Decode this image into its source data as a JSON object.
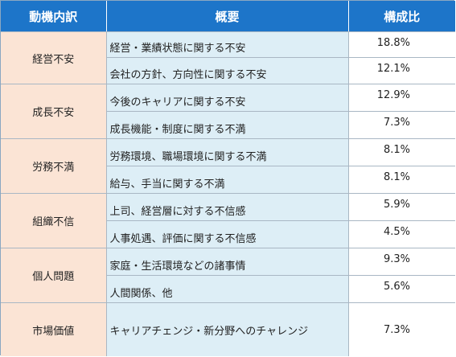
{
  "headers": {
    "category": "動機内訳",
    "overview": "概要",
    "ratio": "構成比"
  },
  "groups": [
    {
      "category": "経営不安",
      "rows": [
        {
          "desc": "経営・業績状態に関する不安",
          "value": "18.8%"
        },
        {
          "desc": "会社の方針、方向性に関する不安",
          "value": "12.1%"
        }
      ]
    },
    {
      "category": "成長不安",
      "rows": [
        {
          "desc": "今後のキャリアに関する不安",
          "value": "12.9%"
        },
        {
          "desc": "成長機能・制度に関する不満",
          "value": "7.3%"
        }
      ]
    },
    {
      "category": "労務不満",
      "rows": [
        {
          "desc": "労務環境、職場環境に関する不満",
          "value": "8.1%"
        },
        {
          "desc": "給与、手当に関する不満",
          "value": "8.1%"
        }
      ]
    },
    {
      "category": "組織不信",
      "rows": [
        {
          "desc": "上司、経営層に対する不信感",
          "value": "5.9%"
        },
        {
          "desc": "人事処遇、評価に関する不信感",
          "value": "4.5%"
        }
      ]
    },
    {
      "category": "個人問題",
      "rows": [
        {
          "desc": "家庭・生活環境などの諸事情",
          "value": "9.3%"
        },
        {
          "desc": "人間関係、他",
          "value": "5.6%"
        }
      ]
    },
    {
      "category": "市場価値",
      "rows": [
        {
          "desc": "キャリアチェンジ・新分野へのチャレンジ",
          "value": "7.3%"
        }
      ]
    }
  ]
}
